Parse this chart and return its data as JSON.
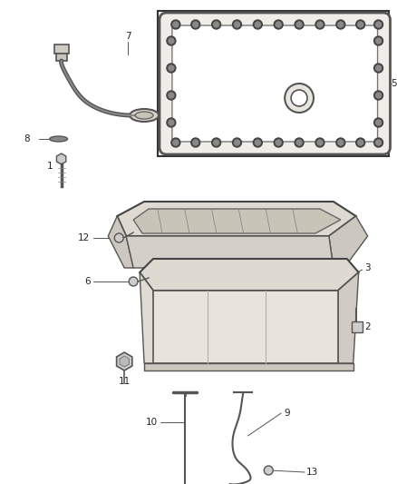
{
  "background_color": "#ffffff",
  "line_color": "#333333",
  "dark_color": "#444444",
  "mid_color": "#777777",
  "light_color": "#bbbbbb",
  "figsize": [
    4.38,
    5.33
  ],
  "dpi": 100,
  "label_fontsize": 7.5
}
